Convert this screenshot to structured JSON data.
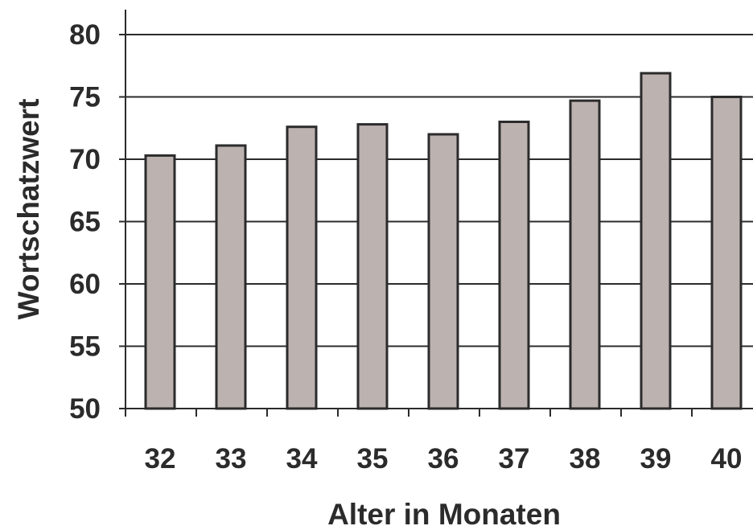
{
  "chart_data": {
    "type": "bar",
    "categories": [
      "32",
      "33",
      "34",
      "35",
      "36",
      "37",
      "38",
      "39",
      "40"
    ],
    "values": [
      70.3,
      71.1,
      72.6,
      72.8,
      72.0,
      73.0,
      74.7,
      76.9,
      75.0
    ],
    "yticks": [
      "50",
      "55",
      "60",
      "65",
      "70",
      "75",
      "80"
    ],
    "title": "",
    "xlabel": "Alter in Monaten",
    "ylabel": "Wortschatzwert",
    "ylim": [
      50,
      80
    ],
    "grid": true,
    "legend": "none",
    "colors": {
      "bar_fill": "#bcb2b0",
      "bar_stroke": "#2b2b2b",
      "grid": "#2b2b2b",
      "text": "#2b2b2b"
    }
  }
}
